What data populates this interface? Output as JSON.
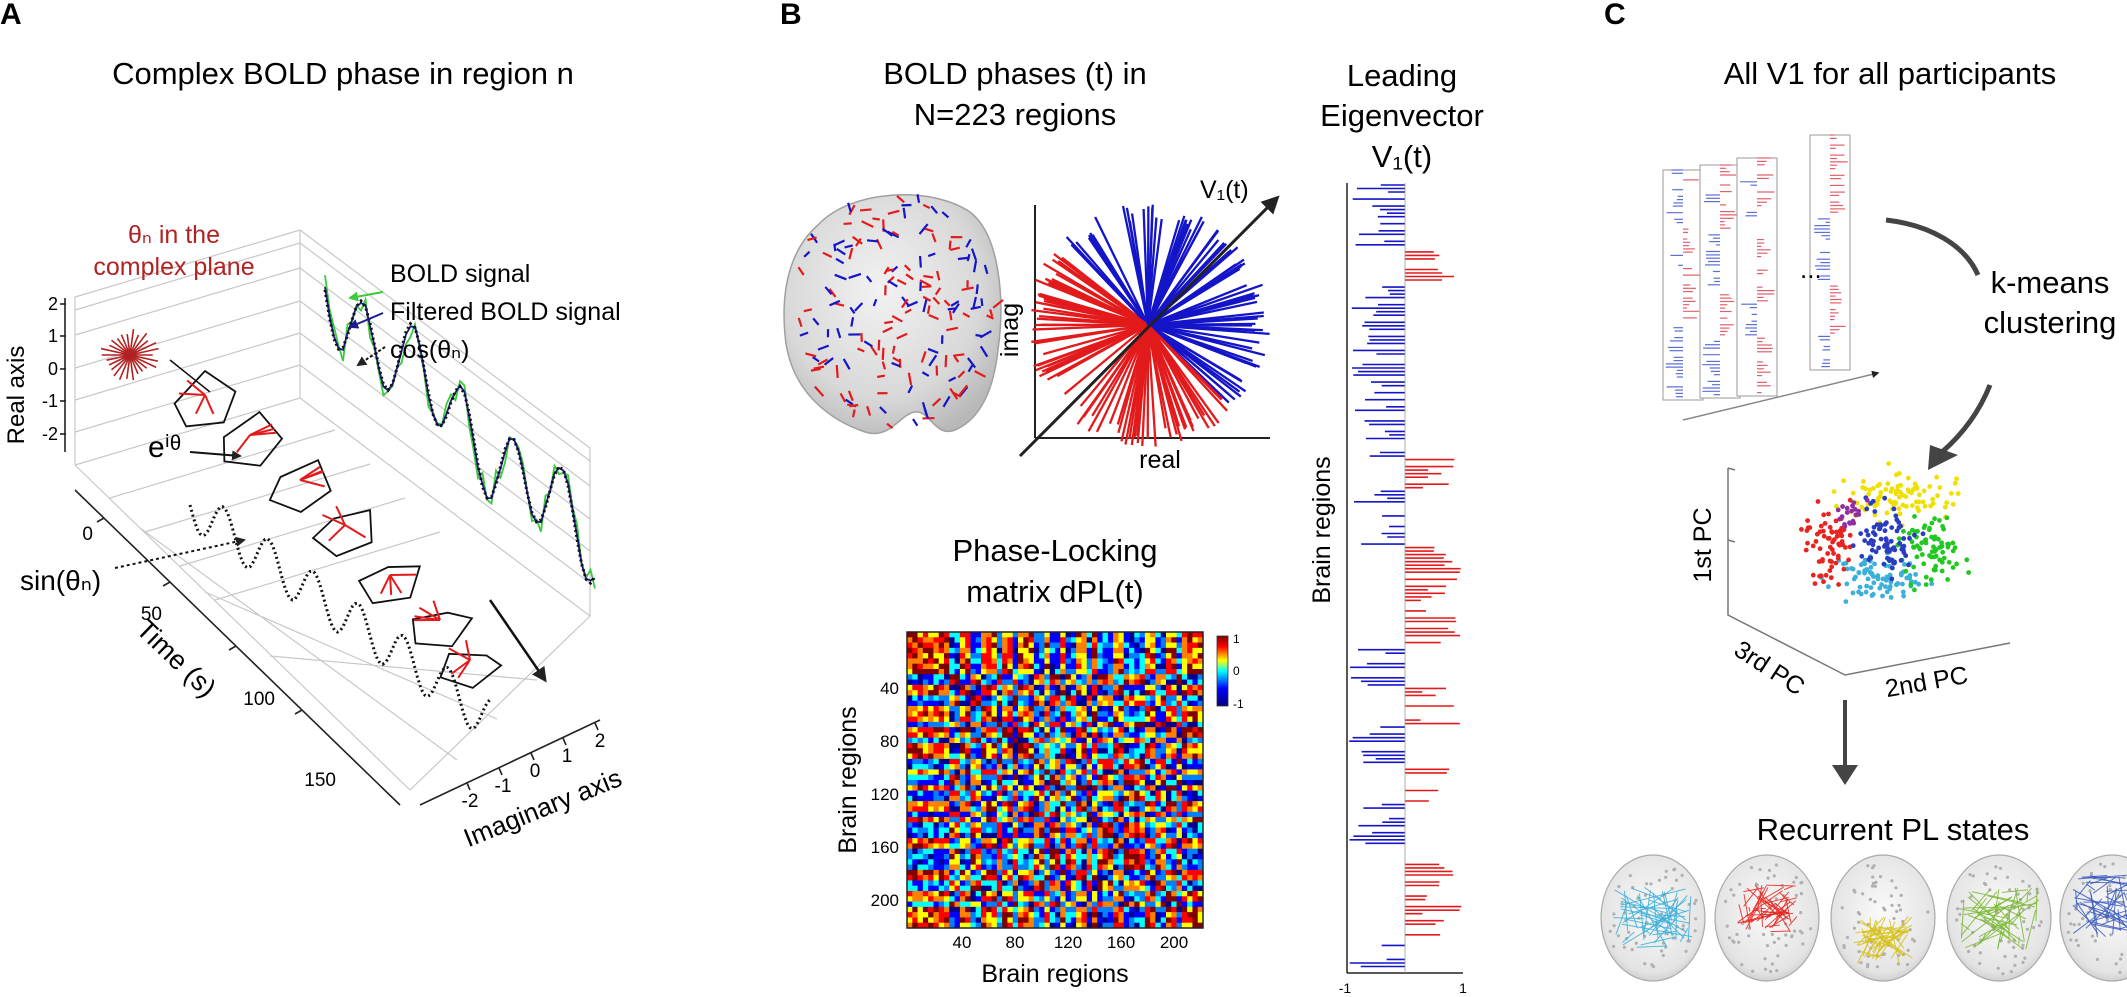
{
  "panels": {
    "a": {
      "letter": "A",
      "title": "Complex BOLD phase in region n",
      "theta_label_line1": "θₙ in the",
      "theta_label_line2": "complex plane",
      "legend": [
        "BOLD signal",
        "Filtered BOLD signal",
        "cos(θₙ)"
      ],
      "eitheta": "eⁱᶿ",
      "sin_label": "sin(θₙ)",
      "real_axis_label": "Real axis",
      "real_ticks": [
        "2",
        "1",
        "0",
        "-1",
        "-2"
      ],
      "time_axis_label": "Time (s)",
      "time_ticks": [
        "0",
        "50",
        "100",
        "150"
      ],
      "imag_axis_label": "Imaginary axis",
      "imag_ticks": [
        "-2",
        "-1",
        "0",
        "1",
        "2"
      ]
    },
    "b": {
      "letter": "B",
      "phases_title_line1": "BOLD phases (t) in",
      "phases_title_line2": "N=223 regions",
      "v1_label": "V₁(t)",
      "imag_label": "imag",
      "real_label": "real",
      "eig_title_line1": "Leading",
      "eig_title_line2": "Eigenvector",
      "eig_title_line3": "V₁(t)",
      "brain_regions_label": "Brain regions",
      "eig_x_ticks": [
        "-1",
        "1"
      ],
      "pl_title_line1": "Phase-Locking",
      "pl_title_line2": "matrix dPL(t)",
      "pl_y_label": "Brain regions",
      "pl_x_label": "Brain regions",
      "pl_y_ticks": [
        "40",
        "80",
        "120",
        "160",
        "200"
      ],
      "pl_x_ticks": [
        "40",
        "80",
        "120",
        "160",
        "200"
      ],
      "colorbar_ticks": [
        "1",
        "0",
        "-1"
      ]
    },
    "c": {
      "letter": "C",
      "title": "All V1 for all participants",
      "ellipsis": "...",
      "kmeans_line1": "k-means",
      "kmeans_line2": "clustering",
      "pc1": "1st PC",
      "pc2": "2nd PC",
      "pc3": "3rd PC",
      "states_title": "Recurrent PL states",
      "state_colors": [
        "#3bb0d9",
        "#e8241f",
        "#d7c11a",
        "#7ab730",
        "#3a5bbf"
      ]
    }
  },
  "colors": {
    "dark_red": "#b22222",
    "blue": "#1414c8",
    "red": "#e31a1c",
    "green": "#3cc93c",
    "navy": "#1c1c8c"
  }
}
